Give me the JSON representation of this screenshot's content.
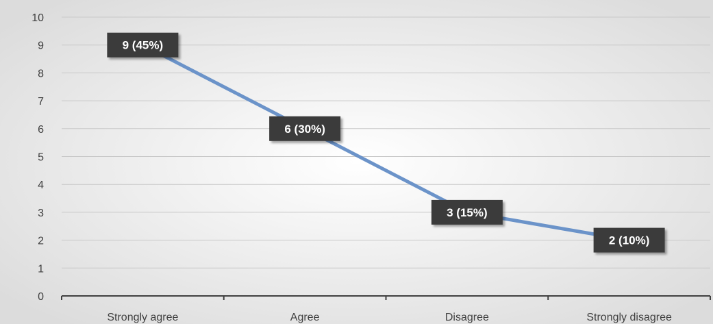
{
  "chart_data": {
    "type": "line",
    "categories": [
      "Strongly agree",
      "Agree",
      "Disagree",
      "Strongly disagree"
    ],
    "values": [
      9,
      6,
      3,
      2
    ],
    "data_labels": [
      "9 (45%)",
      "6 (30%)",
      "3 (15%)",
      "2 (10%)"
    ],
    "title": "",
    "xlabel": "",
    "ylabel": "",
    "ylim": [
      0,
      10
    ],
    "yticks": [
      "0",
      "1",
      "2",
      "3",
      "4",
      "5",
      "6",
      "7",
      "8",
      "9",
      "10"
    ],
    "grid": true,
    "legend": "none",
    "colors": {
      "line": "#6b93c9",
      "label_bg": "#3a3a3a",
      "label_text": "#ffffff",
      "grid": "#c8c8c8",
      "axis": "#404040",
      "tick_text": "#404040",
      "background_center": "#ffffff",
      "background_edge": "#dcdcdc"
    }
  }
}
